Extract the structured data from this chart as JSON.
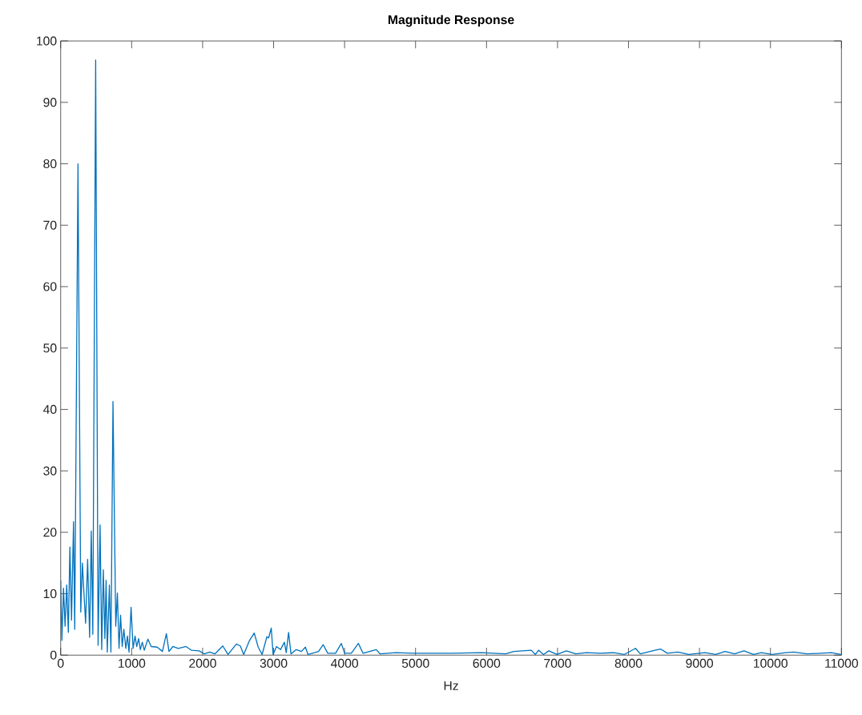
{
  "chart_data": {
    "type": "line",
    "title": "Magnitude Response",
    "xlabel": "Hz",
    "xlim": [
      0,
      11000
    ],
    "ylim": [
      0,
      100
    ],
    "xticks": [
      0,
      1000,
      2000,
      3000,
      4000,
      5000,
      6000,
      7000,
      8000,
      9000,
      10000,
      11000
    ],
    "yticks": [
      0,
      10,
      20,
      30,
      40,
      50,
      60,
      70,
      80,
      90,
      100
    ],
    "grid": false,
    "marker": "none",
    "line_style": "solid",
    "series": [
      {
        "color": "#0072bd",
        "x": [
          0,
          17,
          40,
          62,
          85,
          108,
          130,
          153,
          181,
          198,
          244,
          283,
          306,
          329,
          351,
          380,
          408,
          431,
          453,
          493,
          527,
          555,
          578,
          601,
          623,
          640,
          657,
          686,
          708,
          737,
          776,
          799,
          822,
          844,
          867,
          890,
          918,
          941,
          963,
          992,
          1020,
          1048,
          1071,
          1099,
          1122,
          1150,
          1178,
          1229,
          1275,
          1360,
          1434,
          1489,
          1526,
          1582,
          1656,
          1766,
          1840,
          1951,
          2025,
          2099,
          2173,
          2284,
          2358,
          2476,
          2531,
          2579,
          2661,
          2727,
          2783,
          2838,
          2905,
          2930,
          2967,
          2993,
          3041,
          3097,
          3152,
          3178,
          3211,
          3245,
          3318,
          3392,
          3448,
          3485,
          3577,
          3633,
          3699,
          3762,
          3873,
          3954,
          4002,
          4095,
          4194,
          4261,
          4353,
          4446,
          4501,
          4723,
          4981,
          5351,
          5512,
          5930,
          6271,
          6384,
          6631,
          6688,
          6733,
          6802,
          6878,
          6991,
          7124,
          7257,
          7409,
          7598,
          7788,
          7940,
          8099,
          8167,
          8338,
          8451,
          8547,
          8698,
          8850,
          9078,
          9229,
          9361,
          9494,
          9627,
          9760,
          9873,
          10025,
          10214,
          10329,
          10518,
          10708,
          10860,
          10992
        ],
        "values": [
          12.2,
          2.4,
          10.9,
          4.7,
          11.4,
          3.7,
          17.6,
          5.7,
          21.7,
          4.2,
          80,
          7.0,
          15.0,
          9.9,
          5.2,
          15.6,
          2.9,
          20.2,
          3.4,
          96.9,
          1.6,
          21.2,
          0.9,
          13.9,
          2.7,
          12.2,
          0.5,
          11.4,
          0.5,
          41.3,
          4.7,
          10.1,
          1.1,
          6.5,
          1.4,
          4.2,
          1.1,
          3.1,
          0.5,
          7.8,
          1.1,
          3.1,
          1.4,
          2.7,
          0.9,
          2.1,
          0.8,
          2.6,
          1.4,
          1.3,
          0.6,
          3.5,
          0.6,
          1.4,
          1.1,
          1.4,
          0.8,
          0.7,
          0.2,
          0.5,
          0.2,
          1.5,
          0.1,
          1.8,
          1.5,
          0.1,
          2.4,
          3.6,
          1.3,
          0.1,
          3.0,
          2.8,
          4.4,
          0.1,
          1.4,
          0.9,
          2.1,
          0.4,
          3.7,
          0.2,
          0.9,
          0.6,
          1.3,
          0.1,
          0.4,
          0.6,
          1.7,
          0.3,
          0.3,
          1.9,
          0.3,
          0.3,
          1.9,
          0.3,
          0.6,
          0.9,
          0.2,
          0.4,
          0.3,
          0.3,
          0.3,
          0.4,
          0.2,
          0.6,
          0.8,
          0.1,
          0.8,
          0.1,
          0.7,
          0.1,
          0.7,
          0.2,
          0.4,
          0.3,
          0.4,
          0.1,
          1.1,
          0.2,
          0.7,
          1.0,
          0.3,
          0.5,
          0.1,
          0.4,
          0.1,
          0.6,
          0.2,
          0.7,
          0.1,
          0.4,
          0.1,
          0.4,
          0.5,
          0.2,
          0.3,
          0.4,
          0.1
        ]
      }
    ]
  }
}
